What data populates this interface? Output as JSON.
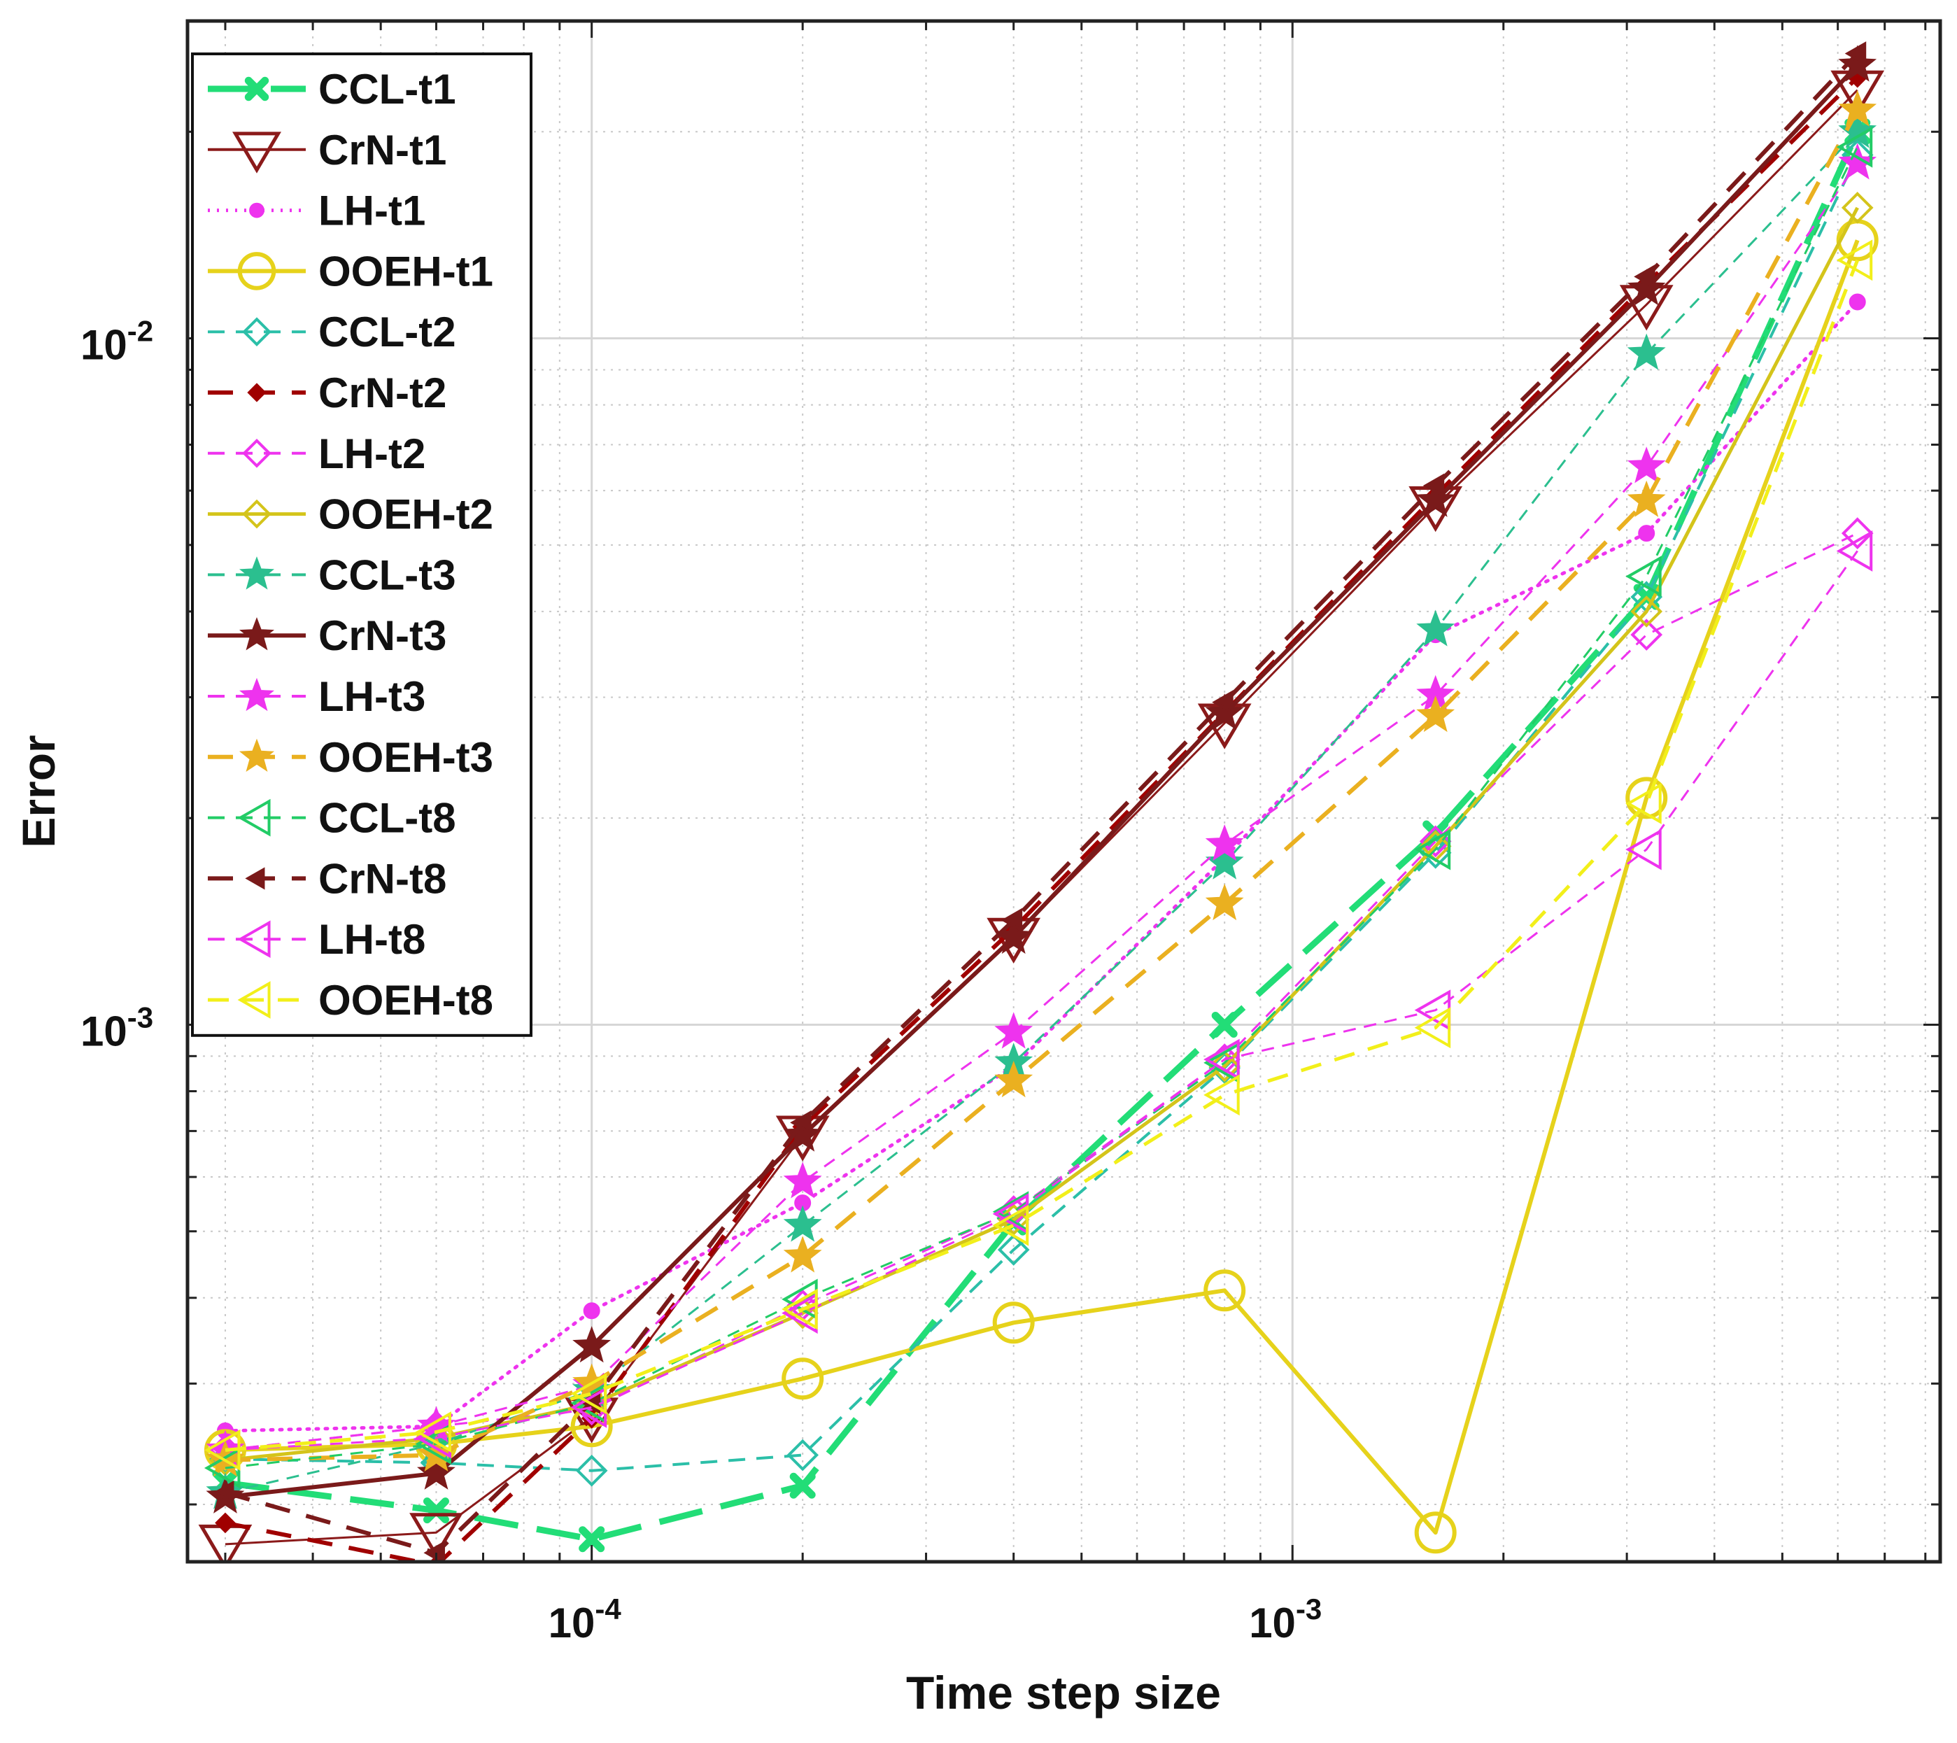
{
  "chart_data": {
    "type": "line",
    "xscale": "log",
    "yscale": "log",
    "title": "",
    "xlabel": "Time step size",
    "ylabel": "Error",
    "xlim": [
      2.65e-05,
      0.0084
    ],
    "ylim": [
      0.000165,
      0.029
    ],
    "grid": true,
    "legend_position": "top-left",
    "x_ticks": [
      {
        "value": 0.0001,
        "base": "10",
        "exp": "-4"
      },
      {
        "value": 0.001,
        "base": "10",
        "exp": "-3"
      }
    ],
    "y_ticks": [
      {
        "value": 0.001,
        "base": "10",
        "exp": "-3"
      },
      {
        "value": 0.01,
        "base": "10",
        "exp": "-2"
      }
    ],
    "x": [
      3e-05,
      6e-05,
      0.0001,
      0.0002,
      0.0004,
      0.0008,
      0.0016,
      0.0032,
      0.0064
    ],
    "series": [
      {
        "name": "CCL-t1",
        "color": "#22dd77",
        "dash": "long",
        "width": 9,
        "marker": "x-cross",
        "values": [
          0.000215,
          0.000196,
          0.000178,
          0.000213,
          0.000515,
          0.001,
          0.0019,
          0.0042,
          0.02
        ]
      },
      {
        "name": "CrN-t1",
        "color": "#8b1a1a",
        "dash": "solid",
        "width": 3,
        "marker": "triangle-down",
        "values": [
          0.000175,
          0.000182,
          0.000268,
          0.00069,
          0.00134,
          0.00275,
          0.0057,
          0.0112,
          0.023
        ]
      },
      {
        "name": "LH-t1",
        "color": "#ee33ee",
        "dash": "dot",
        "width": 5,
        "marker": "dot",
        "values": [
          0.000256,
          0.00026,
          0.000383,
          0.00055,
          0.00087,
          0.00175,
          0.0037,
          0.0052,
          0.0113
        ]
      },
      {
        "name": "OOEH-t1",
        "color": "#e6d21b",
        "dash": "solid",
        "width": 6,
        "marker": "circle",
        "values": [
          0.00024,
          0.000245,
          0.00026,
          0.000305,
          0.000368,
          0.00041,
          0.000182,
          0.00214,
          0.0139
        ]
      },
      {
        "name": "CCL-t2",
        "color": "#2bbfa8",
        "dash": "dashed",
        "width": 4,
        "marker": "diamond",
        "values": [
          0.000233,
          0.00023,
          0.000224,
          0.000236,
          0.00047,
          0.000865,
          0.00178,
          0.0042,
          0.0185
        ]
      },
      {
        "name": "CrN-t2",
        "color": "#a00000",
        "dash": "dashed",
        "width": 6,
        "marker": "diamond-filled",
        "values": [
          0.000188,
          0.000163,
          0.000267,
          0.00071,
          0.00138,
          0.00285,
          0.0059,
          0.012,
          0.024
        ]
      },
      {
        "name": "LH-t2",
        "color": "#ee33ee",
        "dash": "dashed",
        "width": 3,
        "marker": "diamond",
        "values": [
          0.00024,
          0.00026,
          0.000275,
          0.00039,
          0.000535,
          0.00089,
          0.00185,
          0.0037,
          0.0052
        ]
      },
      {
        "name": "OOEH-t2",
        "color": "#d4c41a",
        "dash": "solid",
        "width": 5,
        "marker": "diamond",
        "values": [
          0.000232,
          0.00025,
          0.00028,
          0.00038,
          0.00052,
          0.00087,
          0.00182,
          0.004,
          0.0155
        ]
      },
      {
        "name": "CCL-t3",
        "color": "#2bbf8f",
        "dash": "dashed",
        "width": 3,
        "marker": "star",
        "values": [
          0.000208,
          0.000245,
          0.000293,
          0.00051,
          0.00088,
          0.00172,
          0.00376,
          0.0095,
          0.02
        ]
      },
      {
        "name": "CrN-t3",
        "color": "#7a1a1a",
        "dash": "solid",
        "width": 6,
        "marker": "star",
        "values": [
          0.000205,
          0.000222,
          0.00034,
          0.00069,
          0.00134,
          0.00284,
          0.0058,
          0.0118,
          0.025
        ]
      },
      {
        "name": "LH-t3",
        "color": "#ee33ee",
        "dash": "dashed",
        "width": 3,
        "marker": "star",
        "values": [
          0.00024,
          0.00026,
          0.000298,
          0.00059,
          0.000975,
          0.00183,
          0.00302,
          0.0065,
          0.018
        ]
      },
      {
        "name": "OOEH-t3",
        "color": "#eab020",
        "dash": "dashed",
        "width": 6,
        "marker": "star",
        "values": [
          0.000232,
          0.000236,
          0.0003,
          0.00046,
          0.000828,
          0.0015,
          0.00282,
          0.0058,
          0.0215
        ]
      },
      {
        "name": "CCL-t8",
        "color": "#22cc66",
        "dash": "dashed",
        "width": 3,
        "marker": "triangle-left",
        "values": [
          0.000226,
          0.000245,
          0.000281,
          0.000398,
          0.000534,
          0.00088,
          0.0018,
          0.0045,
          0.019
        ]
      },
      {
        "name": "CrN-t8",
        "color": "#7a1a1a",
        "dash": "dashed",
        "width": 6,
        "marker": "triangle-left-filled",
        "values": [
          0.000208,
          0.00017,
          0.000282,
          0.00072,
          0.00142,
          0.00295,
          0.0061,
          0.0123,
          0.026
        ]
      },
      {
        "name": "LH-t8",
        "color": "#ee33ee",
        "dash": "dashed",
        "width": 3,
        "marker": "triangle-left",
        "values": [
          0.00024,
          0.00025,
          0.000277,
          0.00038,
          0.00053,
          0.00089,
          0.00105,
          0.0018,
          0.0049
        ]
      },
      {
        "name": "OOEH-t8",
        "color": "#f2ef1a",
        "dash": "dashed",
        "width": 5,
        "marker": "triangle-left",
        "values": [
          0.00024,
          0.000255,
          0.00029,
          0.000385,
          0.00051,
          0.00079,
          0.00099,
          0.0021,
          0.013
        ]
      }
    ]
  }
}
